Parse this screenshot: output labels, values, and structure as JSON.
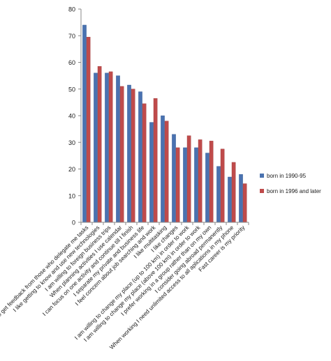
{
  "chart_data": {
    "type": "bar",
    "categories": [
      "I prefer to get feedback from those who delegate me tasks",
      "I like getting to know and use new technologies",
      "I am willing to foreign business trips",
      "When planning activities I use calendar",
      "I can focus on one activity and continue till I finish",
      "I separate my private and business life",
      "I feel concern about job searching and work",
      "I like multitasking",
      "I like changes",
      "I am willing to change my place (up to 100 km) in order to work",
      "I am willing to change my place (above 100 km) in order to work",
      "I prefer working in a group rather than on my own",
      "I consider going abroad permanently",
      "When working I need unlimited access to all aplications in my phone",
      "Fast career is my priority"
    ],
    "series": [
      {
        "name": "born in 1990-95",
        "color": "#4a72b0",
        "values": [
          74,
          56,
          56,
          55,
          51.5,
          49,
          37.5,
          40,
          33,
          28,
          28,
          26,
          21,
          17,
          18
        ]
      },
      {
        "name": "born in 1996 and later",
        "color": "#bf4b4b",
        "values": [
          69.5,
          58.5,
          56.5,
          51,
          50,
          44.5,
          46.5,
          38,
          28,
          32.5,
          31,
          30.5,
          27.5,
          22.5,
          14.5
        ]
      }
    ],
    "ylim": [
      0,
      80
    ],
    "yticks": [
      "0",
      "10",
      "20",
      "30",
      "40",
      "50",
      "60",
      "70",
      "80"
    ],
    "grid": false,
    "legend_position": "right"
  }
}
